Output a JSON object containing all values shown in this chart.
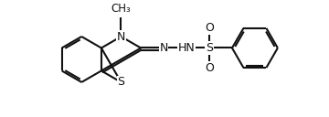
{
  "bg": "#ffffff",
  "lc": "#111111",
  "lw": 1.5,
  "dbo": 0.022,
  "fs": 9,
  "figsize": [
    3.6,
    1.28
  ],
  "dpi": 100,
  "xlim": [
    0.0,
    3.6
  ],
  "ylim": [
    0.0,
    1.28
  ],
  "BL": 0.26
}
